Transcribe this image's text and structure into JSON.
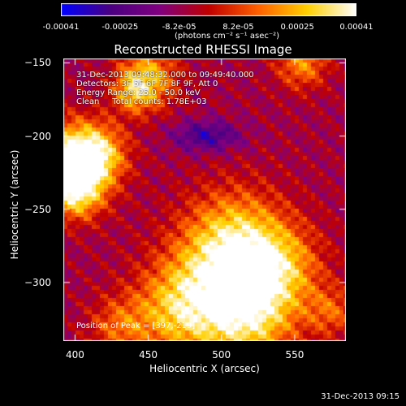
{
  "colorbar": {
    "ticks": [
      "-0.00041",
      "-0.00025",
      "-8.2e-05",
      "8.2e-05",
      "0.00025",
      "0.00041"
    ],
    "unit_label": "(photons cm⁻² s⁻¹ asec⁻²)"
  },
  "chart_data": {
    "type": "heatmap",
    "title": "Reconstructed RHESSI Image",
    "xlabel": "Heliocentric X (arcsec)",
    "ylabel": "Heliocentric Y (arcsec)",
    "xlim": [
      392,
      585
    ],
    "ylim": [
      -340,
      -147
    ],
    "xticks": [
      400,
      450,
      500,
      550
    ],
    "yticks": [
      -150,
      -200,
      -250,
      -300
    ],
    "zlim": [
      -0.00041,
      0.00041
    ],
    "colormap": [
      "#0000ff",
      "#4b0082",
      "#800080",
      "#c00000",
      "#ff6000",
      "#ffd000",
      "#ffffff"
    ],
    "peak": [
      397,
      -219
    ],
    "annotations": [
      "31-Dec-2013 09:48:32.000 to 09:49:40.000",
      "Detectors: 3F 5F 6F 7F 8F 9F, Att 0",
      "Energy Range: 25.0 - 50.0 keV",
      "Clean     Total counts: 1.78E+03"
    ],
    "peak_label": "Position of Peak = [397,-219]"
  },
  "timestamp": "31-Dec-2013 09:15"
}
